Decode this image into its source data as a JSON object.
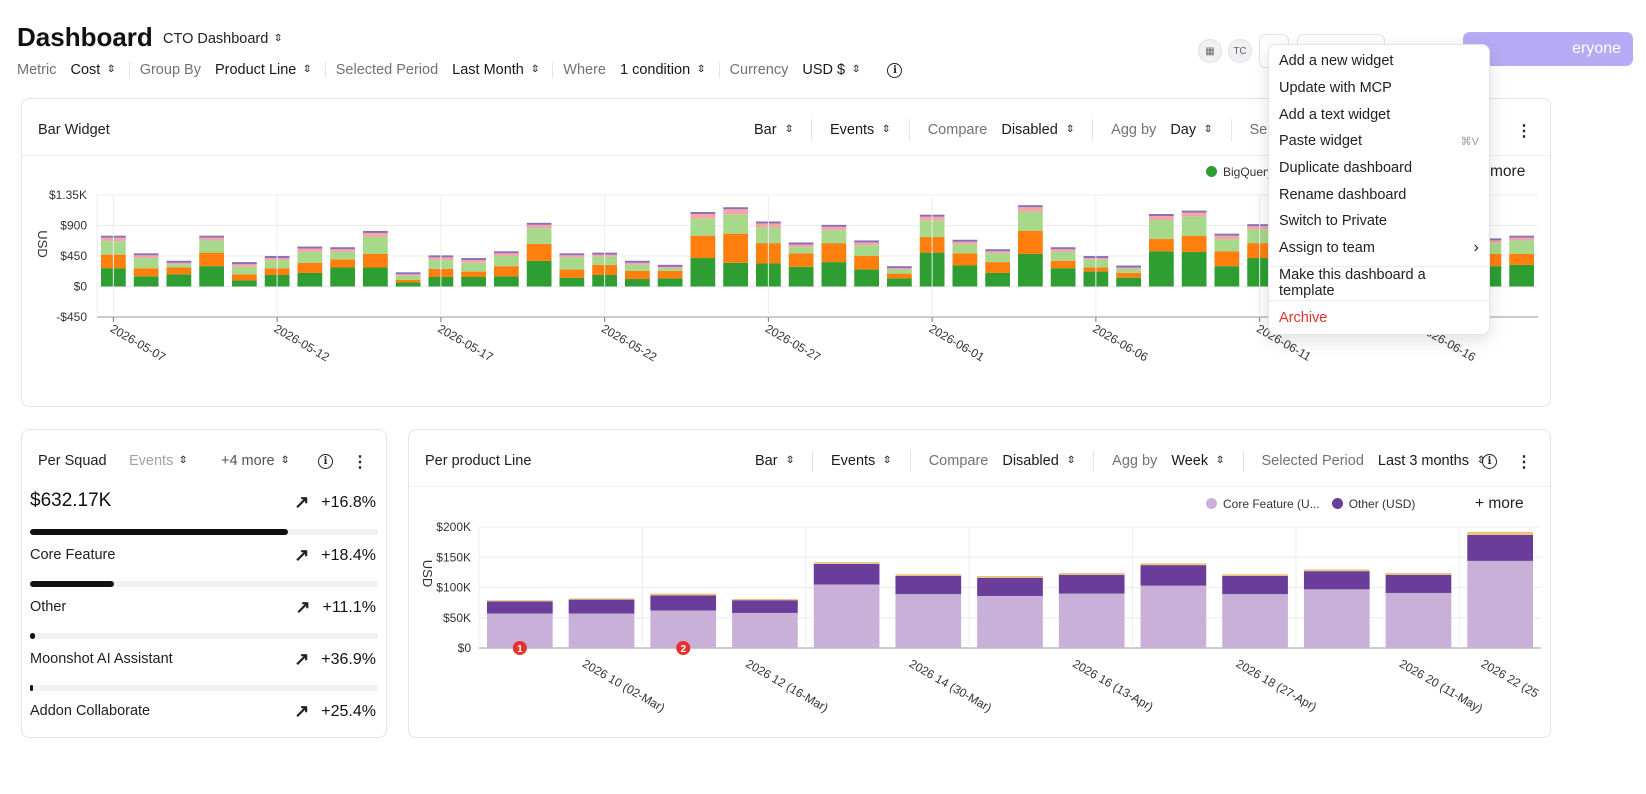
{
  "header": {
    "title": "Dashboard",
    "dashboard_name": "CTO Dashboard",
    "avatar_initials": "TC",
    "share_label": "eryone"
  },
  "filters": [
    {
      "label": "Metric",
      "value": "Cost"
    },
    {
      "label": "Group By",
      "value": "Product Line"
    },
    {
      "label": "Selected Period",
      "value": "Last Month"
    },
    {
      "label": "Where",
      "value": "1 condition"
    },
    {
      "label": "Currency",
      "value": "USD $"
    }
  ],
  "bar_widget": {
    "title": "Bar Widget",
    "type": "Bar",
    "events": "Events",
    "compare_label": "Compare",
    "compare_value": "Disabled",
    "agg_label": "Agg by",
    "agg_value": "Day",
    "selected_label": "Selecte",
    "legend_item": "BigQuery",
    "more_label": "more",
    "y_axis_title": "USD",
    "y_ticks": [
      "$1.35K",
      "$900",
      "$450",
      "$0",
      "-$450"
    ],
    "x_ticks": [
      "2026-05-07",
      "2026-05-12",
      "2026-05-17",
      "2026-05-22",
      "2026-05-27",
      "2026-06-01",
      "2026-06-06",
      "2026-06-11",
      "2026-06-16"
    ]
  },
  "squad_widget": {
    "title": "Per Squad",
    "events": "Events",
    "more": "+4 more",
    "total": "$632.17K",
    "total_change": "+16.8%",
    "total_fill": 0.74,
    "rows": [
      {
        "name": "Core Feature",
        "change": "+18.4%",
        "fill": 0.24
      },
      {
        "name": "Other",
        "change": "+11.1%",
        "fill": 0.01
      },
      {
        "name": "Moonshot AI Assistant",
        "change": "+36.9%",
        "fill": 0.005
      },
      {
        "name": "Addon Collaborate",
        "change": "+25.4%",
        "fill": 0
      }
    ]
  },
  "product_widget": {
    "title": "Per product Line",
    "type": "Bar",
    "events": "Events",
    "compare_label": "Compare",
    "compare_value": "Disabled",
    "agg_label": "Agg by",
    "agg_value": "Week",
    "period_label": "Selected Period",
    "period_value": "Last 3 months",
    "legend": [
      "Core Feature (U...",
      "Other (USD)"
    ],
    "more_label": "+ more",
    "y_axis_title": "USD",
    "y_ticks": [
      "$200K",
      "$150K",
      "$100K",
      "$50K",
      "$0"
    ],
    "x_ticks": [
      "2026 10 (02-Mar)",
      "2026 12 (16-Mar)",
      "2026 14 (30-Mar)",
      "2026 16 (13-Apr)",
      "2026 18 (27-Apr)",
      "2026 20 (11-May)",
      "2026 22 (25"
    ],
    "markers": [
      "1",
      "2"
    ]
  },
  "menu": {
    "items": [
      {
        "label": "Add a new widget",
        "shortcut": ""
      },
      {
        "label": "Update with MCP",
        "shortcut": ""
      },
      {
        "label": "Add a text widget",
        "shortcut": ""
      },
      {
        "label": "Paste widget",
        "shortcut": "⌘V"
      },
      {
        "label": "Duplicate dashboard",
        "shortcut": ""
      },
      {
        "label": "Rename dashboard",
        "shortcut": ""
      },
      {
        "label": "Switch to Private",
        "shortcut": ""
      },
      {
        "label": "Assign to team",
        "shortcut": "›"
      }
    ],
    "template_label": "Make this dashboard a template",
    "archive_label": "Archive"
  },
  "colors": {
    "green": "#2e9e33",
    "orange": "#ff7f0e",
    "light_green": "#a6d98a",
    "pink": "#f4a6a6",
    "purple": "#6a3d9a",
    "lavender": "#c9b0d8",
    "accent": "#b7abf6",
    "danger": "#e5322d"
  },
  "chart_data": [
    {
      "type": "bar",
      "title": "Bar Widget",
      "ylabel": "USD",
      "ylim": [
        -450,
        1350
      ],
      "stacked": true,
      "categories": [
        "2026-05-07",
        "2026-05-08",
        "2026-05-09",
        "2026-05-10",
        "2026-05-11",
        "2026-05-12",
        "2026-05-13",
        "2026-05-14",
        "2026-05-15",
        "2026-05-16",
        "2026-05-17",
        "2026-05-18",
        "2026-05-19",
        "2026-05-20",
        "2026-05-21",
        "2026-05-22",
        "2026-05-23",
        "2026-05-24",
        "2026-05-25",
        "2026-05-26",
        "2026-05-27",
        "2026-05-28",
        "2026-05-29",
        "2026-05-30",
        "2026-05-31",
        "2026-06-01",
        "2026-06-02",
        "2026-06-03",
        "2026-06-04",
        "2026-06-05",
        "2026-06-06",
        "2026-06-07",
        "2026-06-08",
        "2026-06-09",
        "2026-06-10",
        "2026-06-11",
        "2026-06-12",
        "2026-06-13",
        "2026-06-14",
        "2026-06-15",
        "2026-06-16",
        "2026-06-17",
        "2026-06-18",
        "2026-06-19"
      ],
      "series": [
        {
          "name": "BigQuery",
          "values": [
            270,
            150,
            180,
            300,
            90,
            170,
            200,
            280,
            280,
            60,
            140,
            140,
            150,
            380,
            130,
            170,
            110,
            120,
            420,
            350,
            340,
            290,
            360,
            250,
            120,
            500,
            310,
            200,
            480,
            270,
            220,
            130,
            520,
            510,
            300,
            420,
            400,
            390,
            380,
            320,
            410,
            330,
            300,
            320
          ]
        },
        {
          "name": "",
          "values": [
            200,
            120,
            100,
            200,
            90,
            100,
            150,
            120,
            200,
            40,
            120,
            80,
            150,
            250,
            120,
            150,
            120,
            110,
            330,
            430,
            300,
            200,
            280,
            200,
            70,
            230,
            180,
            160,
            340,
            110,
            60,
            70,
            180,
            240,
            220,
            220,
            250,
            200,
            210,
            160,
            230,
            170,
            180,
            160
          ]
        },
        {
          "name": "",
          "values": [
            200,
            150,
            50,
            180,
            110,
            120,
            160,
            110,
            250,
            60,
            130,
            130,
            150,
            230,
            180,
            120,
            90,
            40,
            250,
            280,
            230,
            90,
            190,
            160,
            60,
            240,
            130,
            130,
            280,
            130,
            120,
            60,
            280,
            280,
            180,
            200,
            240,
            210,
            200,
            130,
            200,
            210,
            160,
            200
          ]
        },
        {
          "name": "",
          "values": [
            50,
            40,
            20,
            40,
            40,
            30,
            50,
            40,
            60,
            20,
            40,
            40,
            40,
            50,
            30,
            30,
            30,
            20,
            70,
            80,
            60,
            40,
            50,
            40,
            20,
            60,
            40,
            30,
            70,
            40,
            20,
            20,
            60,
            60,
            50,
            50,
            60,
            50,
            50,
            40,
            50,
            50,
            40,
            40
          ]
        }
      ]
    },
    {
      "type": "bar",
      "title": "Per product Line",
      "ylabel": "USD",
      "ylim": [
        0,
        200000
      ],
      "stacked": true,
      "categories": [
        "2026 09",
        "2026 10 (02-Mar)",
        "2026 11",
        "2026 12 (16-Mar)",
        "2026 13",
        "2026 14 (30-Mar)",
        "2026 15",
        "2026 16 (13-Apr)",
        "2026 17",
        "2026 18 (27-Apr)",
        "2026 19",
        "2026 20 (11-May)",
        "2026 22 (25"
      ],
      "series": [
        {
          "name": "Core Feature (U...",
          "values": [
            57000,
            57000,
            62000,
            58000,
            105000,
            89000,
            86000,
            90000,
            103000,
            89000,
            97000,
            91000,
            144000
          ]
        },
        {
          "name": "Other (USD)",
          "values": [
            20000,
            23000,
            25000,
            21000,
            34000,
            30000,
            30000,
            31000,
            34000,
            30000,
            30000,
            30000,
            43000
          ]
        },
        {
          "name": "",
          "values": [
            2000,
            2000,
            3000,
            2000,
            3000,
            3000,
            3000,
            3000,
            3000,
            3000,
            3000,
            3000,
            5000
          ]
        }
      ]
    }
  ]
}
